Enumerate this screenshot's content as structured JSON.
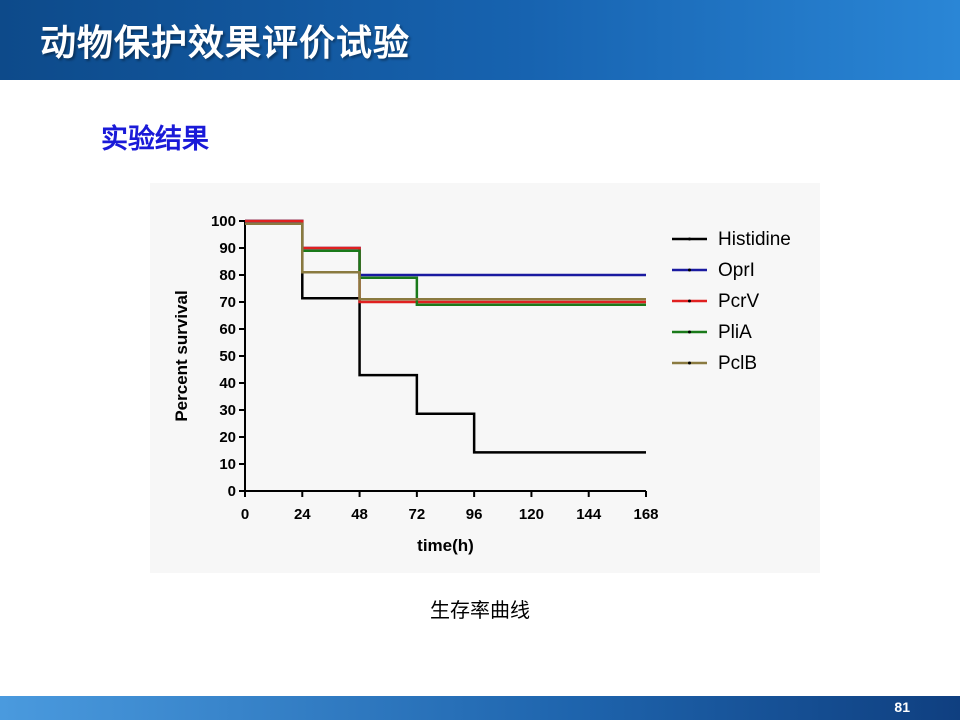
{
  "header": {
    "title": "动物保护效果评价试验"
  },
  "section": {
    "subtitle": "实验结果"
  },
  "caption": "生存率曲线",
  "footer": {
    "page_number": "81"
  },
  "chart_data": {
    "type": "line",
    "step": true,
    "xlabel": "time(h)",
    "ylabel": "Percent survival",
    "xlim": [
      0,
      168
    ],
    "ylim": [
      0,
      100
    ],
    "xticks": [
      0,
      24,
      48,
      72,
      96,
      120,
      144,
      168
    ],
    "yticks": [
      0,
      10,
      20,
      30,
      40,
      50,
      60,
      70,
      80,
      90,
      100
    ],
    "legend_position": "right",
    "series": [
      {
        "name": "Histidine",
        "color": "#000000",
        "x": [
          0,
          24,
          48,
          72,
          96,
          168
        ],
        "y": [
          100,
          71.4,
          42.9,
          28.6,
          14.3,
          14.3
        ]
      },
      {
        "name": "OprI",
        "color": "#1a1aa0",
        "x": [
          0,
          24,
          48,
          168
        ],
        "y": [
          100,
          90,
          80,
          80
        ]
      },
      {
        "name": "PcrV",
        "color": "#e02020",
        "x": [
          0,
          24,
          48,
          168
        ],
        "y": [
          100,
          90,
          70,
          70
        ]
      },
      {
        "name": "PliA",
        "color": "#1a7a1a",
        "x": [
          0,
          24,
          48,
          72,
          168
        ],
        "y": [
          99,
          89,
          79,
          69,
          69
        ]
      },
      {
        "name": "PclB",
        "color": "#8a7a40",
        "x": [
          0,
          24,
          48,
          168
        ],
        "y": [
          99,
          81,
          71,
          71
        ]
      }
    ]
  }
}
